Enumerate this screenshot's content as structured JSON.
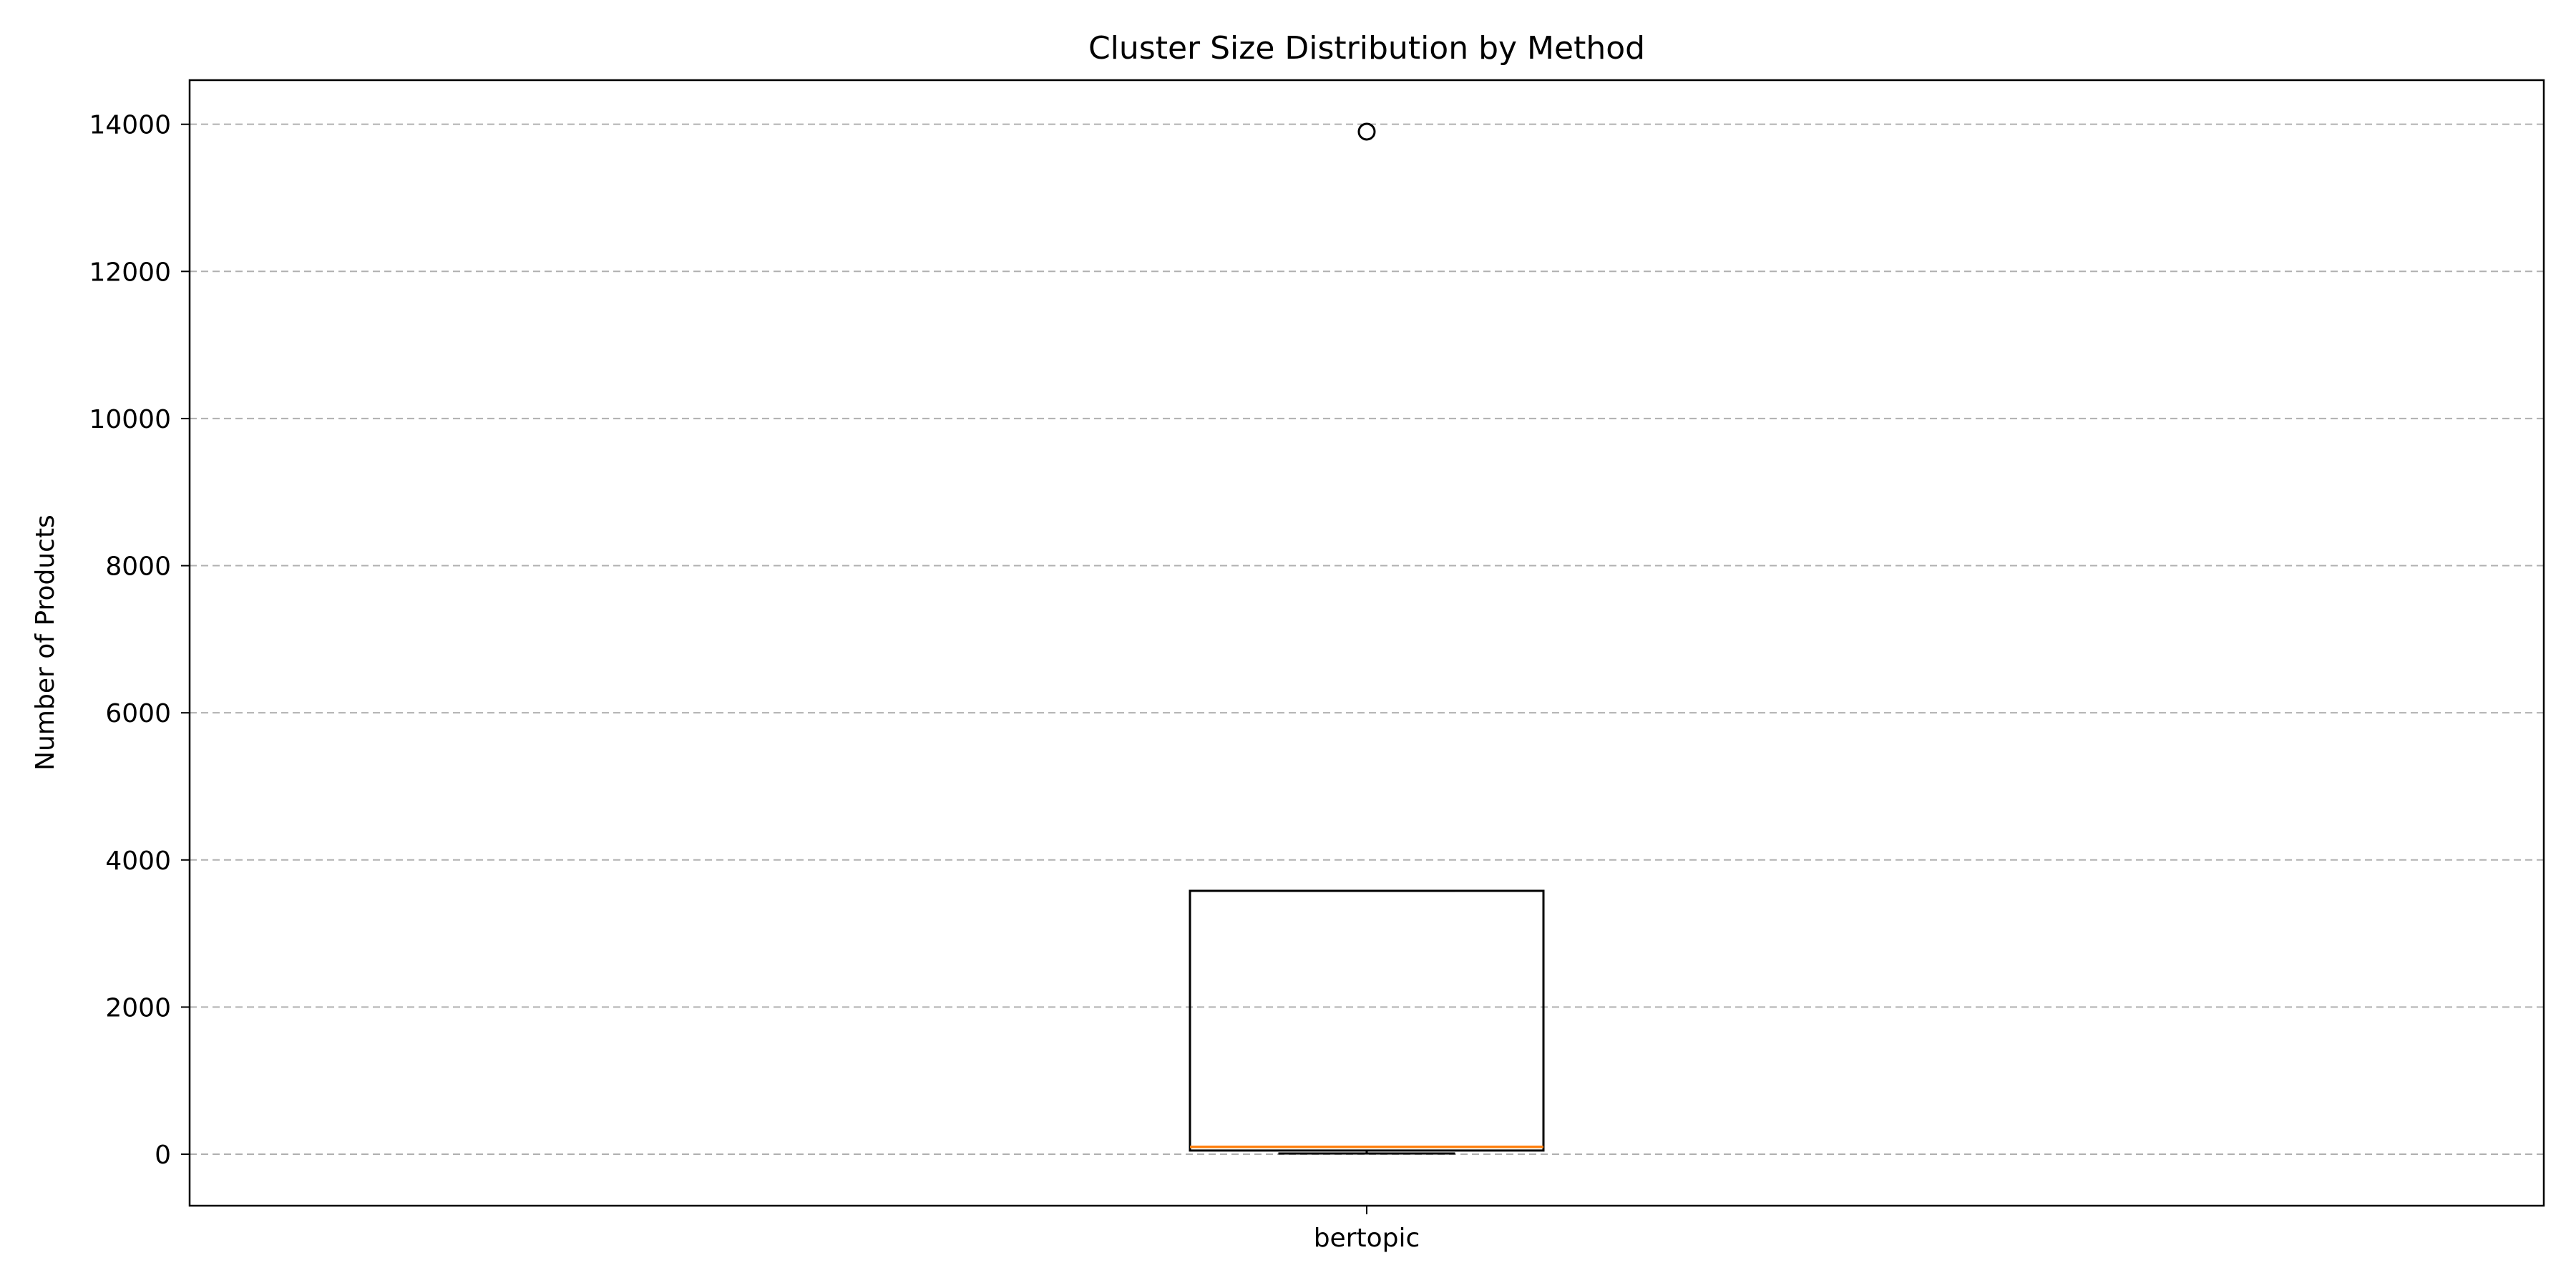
{
  "chart_data": {
    "type": "box",
    "title": "Cluster Size Distribution by Method",
    "xlabel": "",
    "ylabel": "Number of Products",
    "categories": [
      "bertopic"
    ],
    "ylim": [
      -700,
      14600
    ],
    "yticks": [
      0,
      2000,
      4000,
      6000,
      8000,
      10000,
      12000,
      14000
    ],
    "grid": "y-dashed",
    "boxes": [
      {
        "label": "bertopic",
        "whisker_low": 10,
        "q1": 50,
        "median": 100,
        "q3": 3580,
        "whisker_high": 3580,
        "fliers": [
          13900
        ]
      }
    ],
    "colors": {
      "median": "#ff7f0e",
      "grid": "#b0b0b0"
    }
  }
}
